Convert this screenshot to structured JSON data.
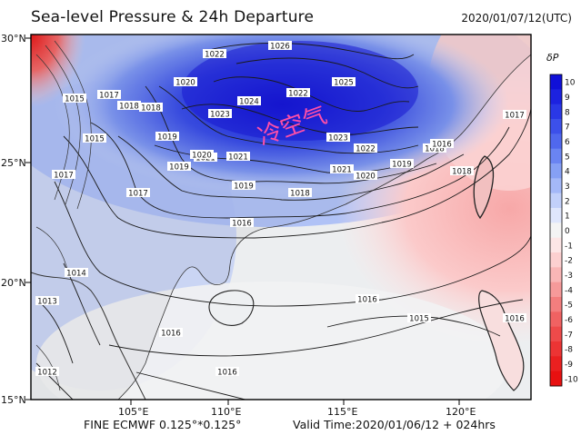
{
  "header": {
    "title": "Sea-level Pressure & 24h Departure",
    "valid_time": "2020/01/07/12(UTC)"
  },
  "footer": {
    "model": "FINE ECMWF 0.125°*0.125°",
    "valid": "Valid Time:2020/01/06/12 + 024hrs"
  },
  "annotation": {
    "text": "冷空气",
    "color": "#ff4fa8"
  },
  "axes": {
    "lon_ticks": [
      "105°E",
      "110°E",
      "115°E",
      "120°E"
    ],
    "lat_ticks": [
      "30°N",
      "25°N",
      "20°N",
      "15°N"
    ]
  },
  "colorbar": {
    "title": "δP",
    "labels": [
      "10",
      "9",
      "8",
      "7",
      "6",
      "5",
      "4",
      "3",
      "2",
      "1",
      "0",
      "-1",
      "-2",
      "-3",
      "-4",
      "-5",
      "-6",
      "-7",
      "-8",
      "-9",
      "-10"
    ],
    "colors": [
      "#1010d8",
      "#1c22e0",
      "#2a38e6",
      "#3c50ea",
      "#5068ee",
      "#6a84f2",
      "#86a0f5",
      "#a4b8f8",
      "#c2d0fa",
      "#dfe6fc",
      "#f4f4f4",
      "#fde6e6",
      "#fcd0d0",
      "#f9b6b6",
      "#f69a9a",
      "#f37e7e",
      "#f06262",
      "#ee4a4a",
      "#ec3434",
      "#ea2020",
      "#e81010"
    ]
  },
  "isobars": [
    "1026",
    "1025",
    "1024",
    "1023",
    "1022",
    "1021",
    "1020",
    "1019",
    "1018",
    "1017",
    "1016",
    "1015",
    "1014",
    "1013",
    "1012"
  ],
  "isobar_labels": [
    {
      "text": "1026"
    },
    {
      "text": "1025"
    },
    {
      "text": "1024"
    },
    {
      "text": "1023"
    },
    {
      "text": "1023"
    },
    {
      "text": "1022"
    },
    {
      "text": "1022"
    },
    {
      "text": "1022"
    },
    {
      "text": "1021"
    },
    {
      "text": "1021"
    },
    {
      "text": "1021"
    },
    {
      "text": "1020"
    },
    {
      "text": "1020"
    },
    {
      "text": "1020"
    },
    {
      "text": "1019"
    },
    {
      "text": "1019"
    },
    {
      "text": "1019"
    },
    {
      "text": "1019"
    },
    {
      "text": "1018"
    },
    {
      "text": "1018"
    },
    {
      "text": "1018"
    },
    {
      "text": "1018"
    },
    {
      "text": "1018"
    },
    {
      "text": "1017"
    },
    {
      "text": "1017"
    },
    {
      "text": "1017"
    },
    {
      "text": "1017"
    },
    {
      "text": "1016"
    },
    {
      "text": "1016"
    },
    {
      "text": "1016"
    },
    {
      "text": "1016"
    },
    {
      "text": "1016"
    },
    {
      "text": "1016"
    },
    {
      "text": "1015"
    },
    {
      "text": "1015"
    },
    {
      "text": "1015"
    },
    {
      "text": "1014"
    },
    {
      "text": "1013"
    },
    {
      "text": "1012"
    }
  ]
}
